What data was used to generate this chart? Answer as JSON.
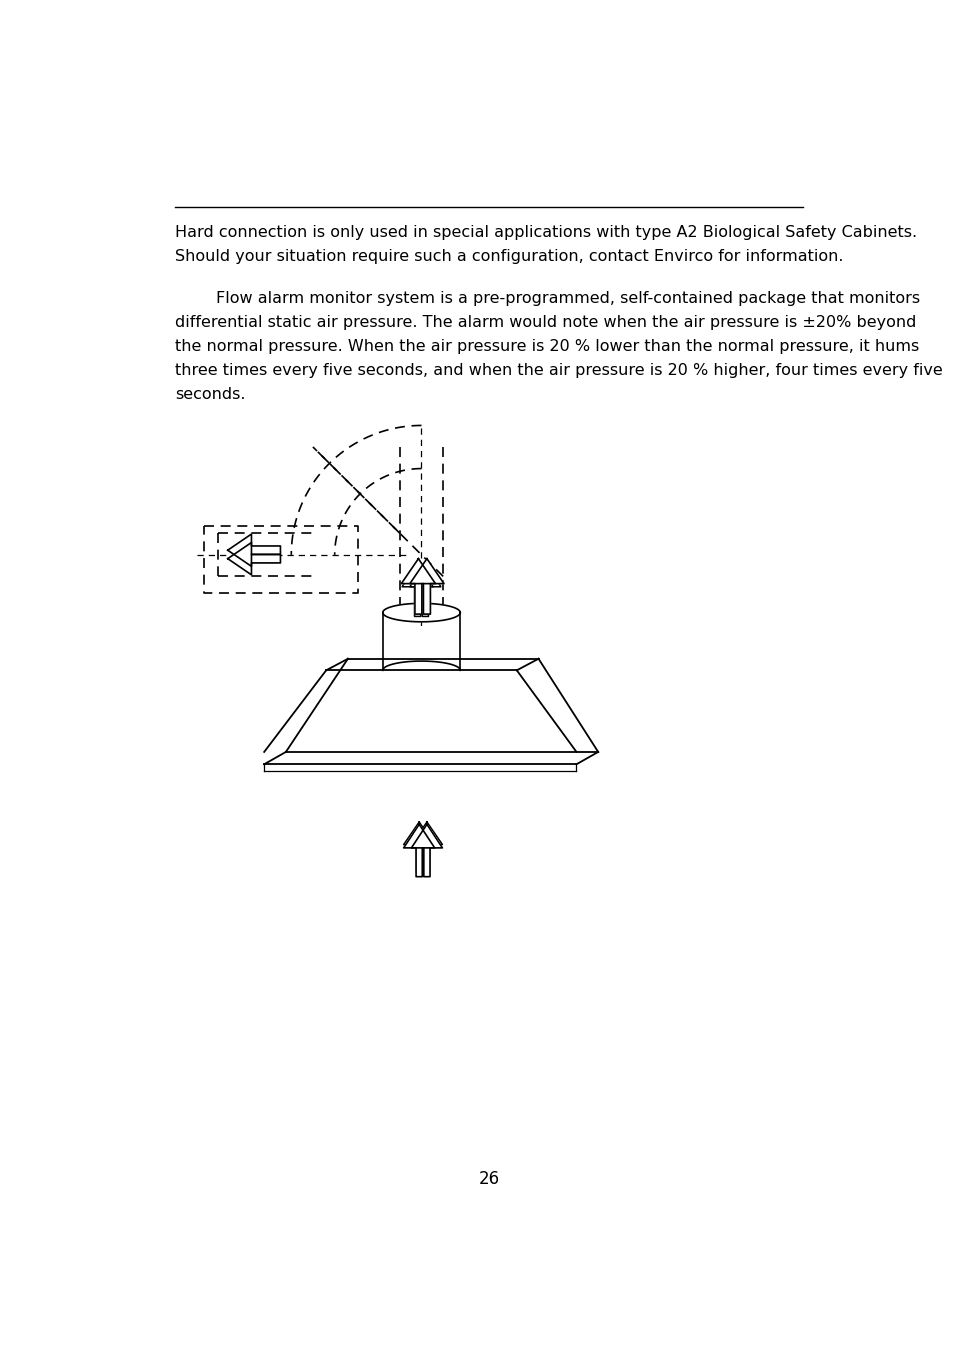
{
  "background_color": "#ffffff",
  "line1": "Hard connection is only used in special applications with type A2 Biological Safety Cabinets.",
  "line2": "Should your situation require such a configuration, contact Envirco for information.",
  "para_indent": "        Flow alarm monitor system is a pre-programmed, self-contained package that monitors",
  "para2": "differential static air pressure. The alarm would note when the air pressure is ±20% beyond",
  "para3": "the normal pressure. When the air pressure is 20 % lower than the normal pressure, it hums",
  "para4": "three times every five seconds, and when the air pressure is 20 % higher, four times every five",
  "para5": "seconds.",
  "page_number": "26",
  "font_size_body": 11.5,
  "text_color": "#000000"
}
